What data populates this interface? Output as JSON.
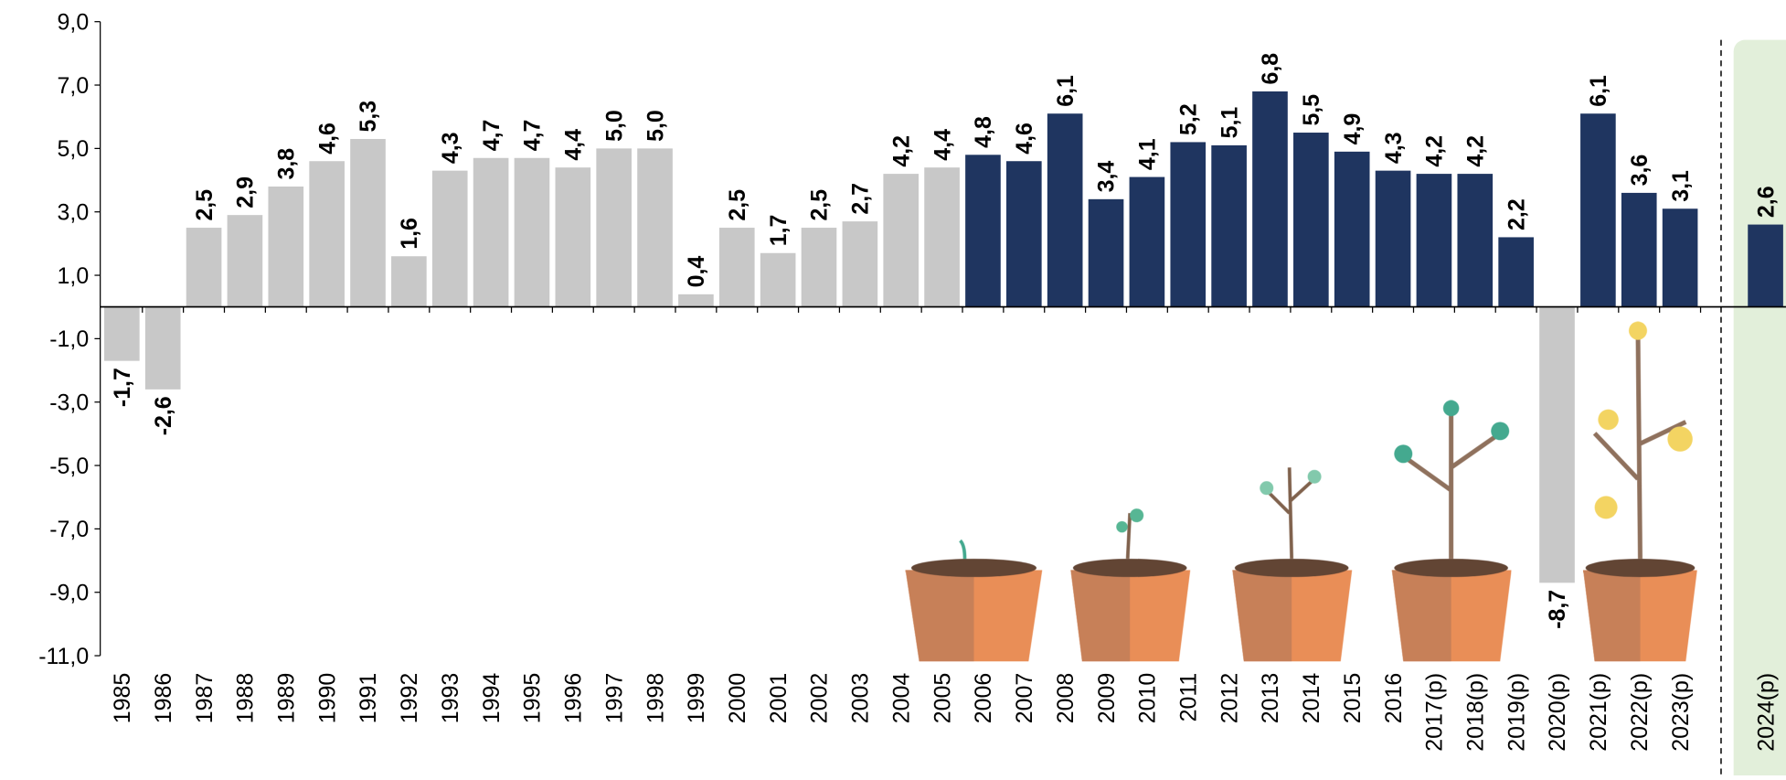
{
  "chart_data": {
    "type": "bar",
    "categories": [
      "1985",
      "1986",
      "1987",
      "1988",
      "1989",
      "1990",
      "1991",
      "1992",
      "1993",
      "1994",
      "1995",
      "1996",
      "1997",
      "1998",
      "1999",
      "2000",
      "2001",
      "2002",
      "2003",
      "2004",
      "2005",
      "2006",
      "2007",
      "2008",
      "2009",
      "2010",
      "2011",
      "2012",
      "2013",
      "2014",
      "2015",
      "2016",
      "2017(p)",
      "2018(p)",
      "2019(p)",
      "2020(p)",
      "2021(p)",
      "2022(p)",
      "2023(p)",
      "2024(p)"
    ],
    "values": [
      -1.7,
      -2.6,
      2.5,
      2.9,
      3.8,
      4.6,
      5.3,
      1.6,
      4.3,
      4.7,
      4.7,
      4.4,
      5.0,
      5.0,
      0.4,
      2.5,
      1.7,
      2.5,
      2.7,
      4.2,
      4.4,
      4.8,
      4.6,
      6.1,
      3.4,
      4.1,
      5.2,
      5.1,
      6.8,
      5.5,
      4.9,
      4.3,
      4.2,
      4.2,
      2.2,
      -8.7,
      6.1,
      3.6,
      3.1,
      2.6
    ],
    "value_labels": [
      "-1,7",
      "-2,6",
      "2,5",
      "2,9",
      "3,8",
      "4,6",
      "5,3",
      "1,6",
      "4,3",
      "4,7",
      "4,7",
      "4,4",
      "5,0",
      "5,0",
      "0,4",
      "2,5",
      "1,7",
      "2,5",
      "2,7",
      "4,2",
      "4,4",
      "4,8",
      "4,6",
      "6,1",
      "3,4",
      "4,1",
      "5,2",
      "5,1",
      "6,8",
      "5,5",
      "4,9",
      "4,3",
      "4,2",
      "4,2",
      "2,2",
      "-8,7",
      "6,1",
      "3,6",
      "3,1",
      "2,6"
    ],
    "colors": [
      "#c8c8c8",
      "#c8c8c8",
      "#c8c8c8",
      "#c8c8c8",
      "#c8c8c8",
      "#c8c8c8",
      "#c8c8c8",
      "#c8c8c8",
      "#c8c8c8",
      "#c8c8c8",
      "#c8c8c8",
      "#c8c8c8",
      "#c8c8c8",
      "#c8c8c8",
      "#c8c8c8",
      "#c8c8c8",
      "#c8c8c8",
      "#c8c8c8",
      "#c8c8c8",
      "#c8c8c8",
      "#c8c8c8",
      "#1f3560",
      "#1f3560",
      "#1f3560",
      "#1f3560",
      "#1f3560",
      "#1f3560",
      "#1f3560",
      "#1f3560",
      "#1f3560",
      "#1f3560",
      "#1f3560",
      "#1f3560",
      "#1f3560",
      "#1f3560",
      "#c8c8c8",
      "#1f3560",
      "#1f3560",
      "#1f3560",
      "#1f3560"
    ],
    "ylim": [
      -11,
      9
    ],
    "yticks": [
      {
        "value": -11,
        "label": "-11,0"
      },
      {
        "value": -9,
        "label": "-9,0"
      },
      {
        "value": -7,
        "label": "-7,0"
      },
      {
        "value": -5,
        "label": "-5,0"
      },
      {
        "value": -3,
        "label": "-3,0"
      },
      {
        "value": -1,
        "label": "-1,0"
      },
      {
        "value": 1,
        "label": "1,0"
      },
      {
        "value": 3,
        "label": "3,0"
      },
      {
        "value": 5,
        "label": "5,0"
      },
      {
        "value": 7,
        "label": "7,0"
      },
      {
        "value": 9,
        "label": "9,0"
      }
    ]
  }
}
